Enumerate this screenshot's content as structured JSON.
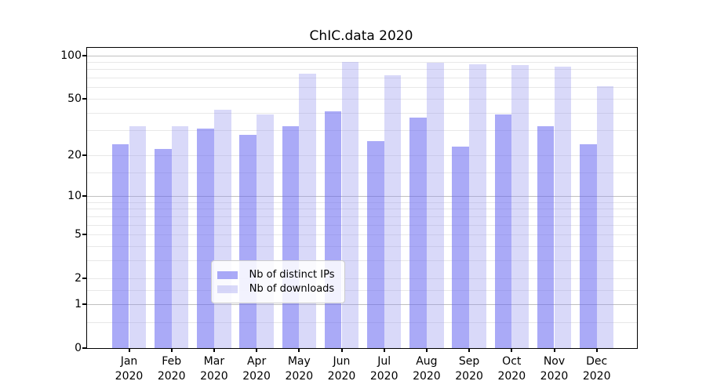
{
  "title": "ChIC.data 2020",
  "colors": {
    "bar_distinct_ips": "rgba(100,100,240,0.55)",
    "bar_downloads": "rgba(146,146,238,0.35)",
    "grid_major": "#c0c0c0",
    "grid_minor": "#e8e8e8",
    "axis_line": "#000000",
    "text": "#000000",
    "legend_border": "#cccccc",
    "legend_background": "rgba(255,255,255,0.85)"
  },
  "chart_data": {
    "type": "bar",
    "title": "ChIC.data 2020",
    "categories": [
      "Jan 2020",
      "Feb 2020",
      "Mar 2020",
      "Apr 2020",
      "May 2020",
      "Jun 2020",
      "Jul 2020",
      "Aug 2020",
      "Sep 2020",
      "Oct 2020",
      "Nov 2020",
      "Dec 2020"
    ],
    "month_labels": [
      "Jan",
      "Feb",
      "Mar",
      "Apr",
      "May",
      "Jun",
      "Jul",
      "Aug",
      "Sep",
      "Oct",
      "Nov",
      "Dec"
    ],
    "year_label": "2020",
    "series": [
      {
        "name": "Nb of distinct IPs",
        "values": [
          24,
          22,
          31,
          28,
          32,
          41,
          25,
          37,
          23,
          39,
          32,
          24
        ]
      },
      {
        "name": "Nb of downloads",
        "values": [
          32,
          32,
          42,
          39,
          75,
          90,
          73,
          89,
          87,
          86,
          83,
          61
        ]
      }
    ],
    "xlabel": "",
    "ylabel": "",
    "yscale": "log(1+x)",
    "ylim": [
      0,
      113
    ],
    "yticks": [
      0,
      1,
      2,
      5,
      10,
      20,
      50,
      100
    ],
    "grid_major_values": [
      1,
      10,
      100
    ],
    "grid_minor_values": [
      0.5,
      1.5,
      2,
      3,
      4,
      5,
      6,
      7,
      8,
      9,
      15,
      20,
      30,
      40,
      50,
      60,
      70,
      80,
      90
    ],
    "grid": "on",
    "legend_position": "lower center"
  },
  "legend": {
    "items": [
      {
        "label": "Nb of distinct IPs"
      },
      {
        "label": "Nb of downloads"
      }
    ]
  }
}
